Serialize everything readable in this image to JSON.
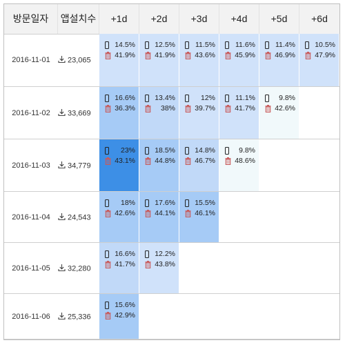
{
  "colors": {
    "cell_lightest": "#f1f9fb",
    "cell_light": "#d0e2fa",
    "cell_mid": "#c1d9f8",
    "cell_blue": "#a6cbf6",
    "cell_strong": "#3d8fe6",
    "trash_red": "#c85a5a"
  },
  "header": {
    "visit_date": "방문일자",
    "installs": "앱설치수",
    "days": [
      "+1d",
      "+2d",
      "+3d",
      "+4d",
      "+5d",
      "+6d"
    ]
  },
  "rows": [
    {
      "date": "2016-11-01",
      "installs": "23,065",
      "cells": [
        {
          "retention": "14.5%",
          "uninstall": "41.9%"
        },
        {
          "retention": "12.5%",
          "uninstall": "41.9%"
        },
        {
          "retention": "11.5%",
          "uninstall": "43.6%"
        },
        {
          "retention": "11.6%",
          "uninstall": "45.9%"
        },
        {
          "retention": "11.4%",
          "uninstall": "46.9%"
        },
        {
          "retention": "10.5%",
          "uninstall": "47.9%"
        }
      ]
    },
    {
      "date": "2016-11-02",
      "installs": "33,669",
      "cells": [
        {
          "retention": "16.6%",
          "uninstall": "36.3%"
        },
        {
          "retention": "13.4%",
          "uninstall": "38%"
        },
        {
          "retention": "12%",
          "uninstall": "39.7%"
        },
        {
          "retention": "11.1%",
          "uninstall": "41.7%"
        },
        {
          "retention": "9.8%",
          "uninstall": "42.6%"
        }
      ]
    },
    {
      "date": "2016-11-03",
      "installs": "34,779",
      "cells": [
        {
          "retention": "23%",
          "uninstall": "43.1%"
        },
        {
          "retention": "18.5%",
          "uninstall": "44.8%"
        },
        {
          "retention": "14.8%",
          "uninstall": "46.7%"
        },
        {
          "retention": "9.8%",
          "uninstall": "48.6%"
        }
      ]
    },
    {
      "date": "2016-11-04",
      "installs": "24,543",
      "cells": [
        {
          "retention": "18%",
          "uninstall": "42.6%"
        },
        {
          "retention": "17.6%",
          "uninstall": "44.1%"
        },
        {
          "retention": "15.5%",
          "uninstall": "46.1%"
        }
      ]
    },
    {
      "date": "2016-11-05",
      "installs": "32,280",
      "cells": [
        {
          "retention": "16.6%",
          "uninstall": "41.7%"
        },
        {
          "retention": "12.2%",
          "uninstall": "43.8%"
        }
      ]
    },
    {
      "date": "2016-11-06",
      "installs": "25,336",
      "cells": [
        {
          "retention": "15.6%",
          "uninstall": "42.9%"
        }
      ]
    }
  ]
}
